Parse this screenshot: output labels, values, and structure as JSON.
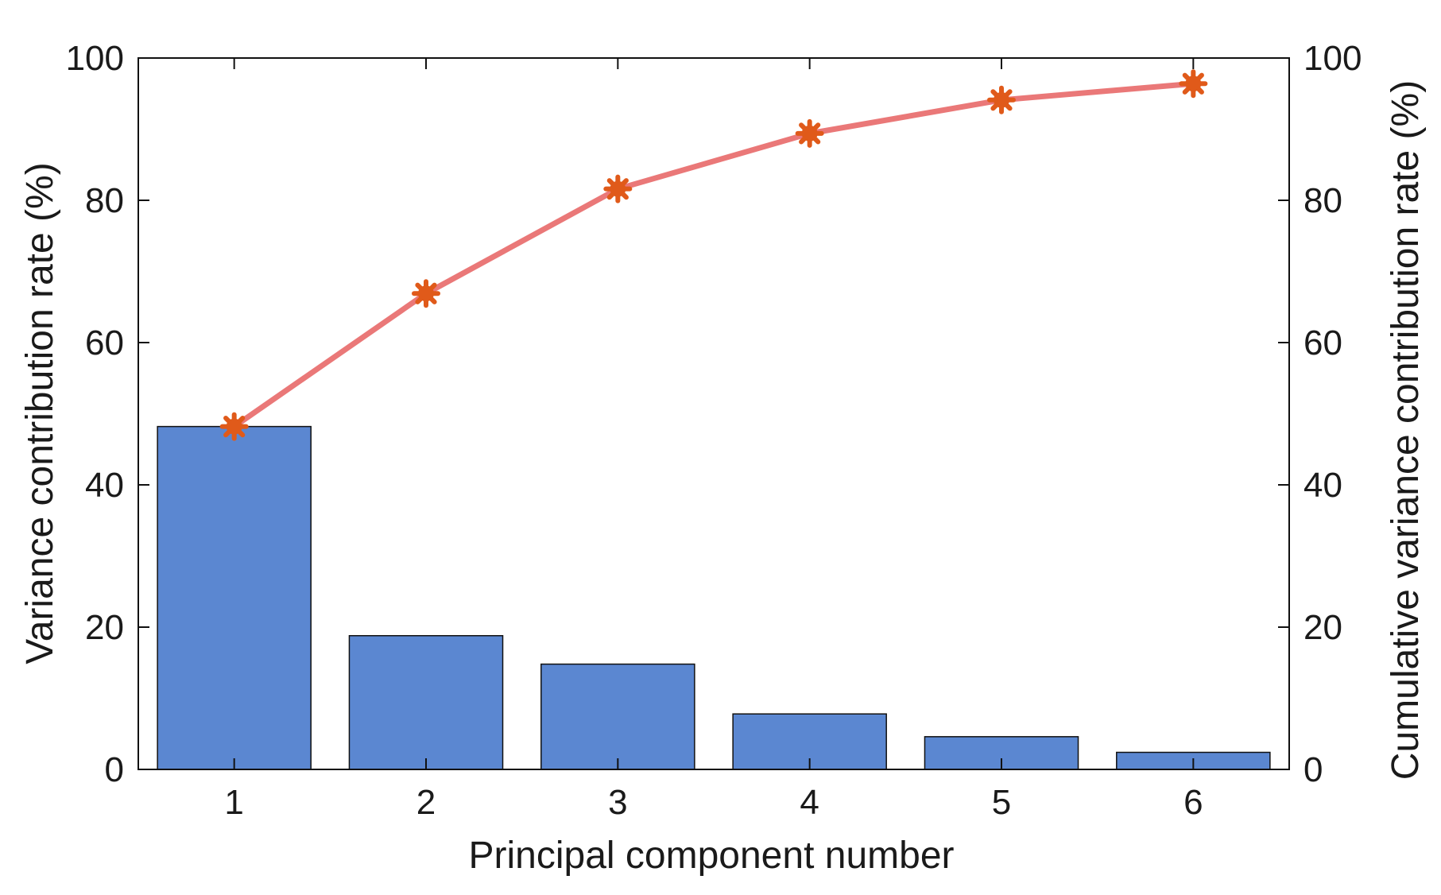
{
  "chart_data": {
    "type": "bar",
    "categories": [
      "1",
      "2",
      "3",
      "4",
      "5",
      "6"
    ],
    "series": [
      {
        "type": "bar",
        "axis": "left",
        "values": [
          48.2,
          18.8,
          14.8,
          7.8,
          4.6,
          2.4
        ],
        "color": "#5b87d1"
      },
      {
        "type": "line",
        "axis": "right",
        "values": [
          48.2,
          66.9,
          81.6,
          89.4,
          94.1,
          96.4
        ],
        "color": "#ea7878",
        "marker_color": "#e05a1a"
      }
    ],
    "xlabel": "Principal component number",
    "ylabel": "Variance contribution rate (%)",
    "y2label": "Cumulative variance contribution rate (%)",
    "ylim": [
      0,
      100
    ],
    "y2lim": [
      0,
      100
    ],
    "yticks": [
      0,
      20,
      40,
      60,
      80,
      100
    ],
    "grid": false,
    "legend": "none"
  }
}
